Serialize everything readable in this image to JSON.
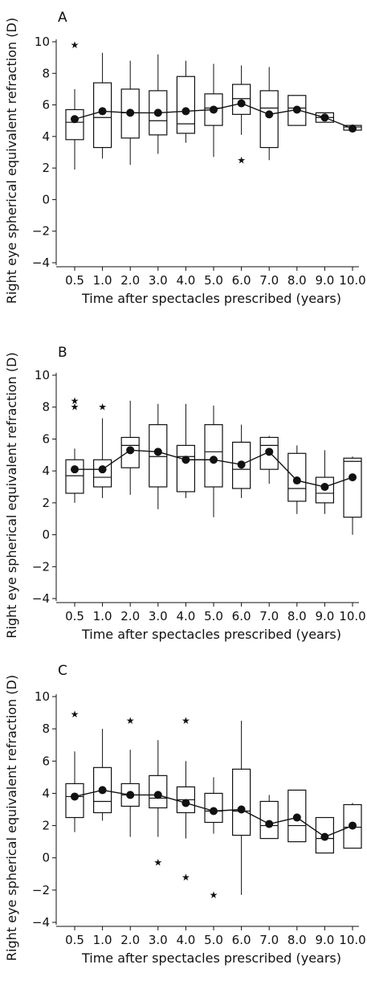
{
  "chart_data": [
    {
      "type": "box",
      "panel_label": "A",
      "xlabel": "Time after spectacles prescribed (years)",
      "ylabel": "Right eye spherical equivalent refraction (D)",
      "ylim": [
        -4,
        10
      ],
      "yticks": [
        -4,
        -2,
        0,
        2,
        4,
        6,
        8,
        10
      ],
      "ytick_labels": [
        "−4",
        "−2",
        "0",
        "2",
        "4",
        "6",
        "8",
        "10"
      ],
      "categories": [
        "0.5",
        "1.0",
        "2.0",
        "3.0",
        "4.0",
        "5.0",
        "6.0",
        "7.0",
        "8.0",
        "9.0",
        "10.0"
      ],
      "boxes": [
        {
          "min": 1.9,
          "q1": 3.8,
          "median": 4.9,
          "q3": 5.7,
          "max": 7.0
        },
        {
          "min": 2.6,
          "q1": 3.3,
          "median": 5.2,
          "q3": 7.4,
          "max": 9.3
        },
        {
          "min": 2.2,
          "q1": 3.9,
          "median": 5.5,
          "q3": 7.0,
          "max": 8.8
        },
        {
          "min": 2.9,
          "q1": 4.1,
          "median": 5.0,
          "q3": 6.9,
          "max": 9.2
        },
        {
          "min": 3.6,
          "q1": 4.2,
          "median": 4.8,
          "q3": 7.8,
          "max": 8.8
        },
        {
          "min": 2.7,
          "q1": 4.7,
          "median": 5.8,
          "q3": 6.7,
          "max": 8.6
        },
        {
          "min": 4.1,
          "q1": 5.4,
          "median": 6.4,
          "q3": 7.3,
          "max": 8.5
        },
        {
          "min": 2.5,
          "q1": 3.3,
          "median": 5.8,
          "q3": 6.9,
          "max": 8.4
        },
        {
          "min": 4.7,
          "q1": 4.7,
          "median": 5.8,
          "q3": 6.6,
          "max": 6.6
        },
        {
          "min": 4.9,
          "q1": 4.9,
          "median": 5.2,
          "q3": 5.5,
          "max": 5.5
        },
        {
          "min": 4.4,
          "q1": 4.4,
          "median": 4.6,
          "q3": 4.7,
          "max": 4.7
        }
      ],
      "means": [
        5.1,
        5.6,
        5.5,
        5.5,
        5.6,
        5.7,
        6.1,
        5.4,
        5.7,
        5.2,
        4.5
      ],
      "outliers": [
        {
          "category": "0.5",
          "value": 9.8
        },
        {
          "category": "6.0",
          "value": 2.5
        }
      ]
    },
    {
      "type": "box",
      "panel_label": "B",
      "xlabel": "Time after spectacles prescribed (years)",
      "ylabel": "Right eye spherical equivalent refraction (D)",
      "ylim": [
        -4,
        10
      ],
      "yticks": [
        -4,
        -2,
        0,
        2,
        4,
        6,
        8,
        10
      ],
      "ytick_labels": [
        "−4",
        "−2",
        "0",
        "2",
        "4",
        "6",
        "8",
        "10"
      ],
      "categories": [
        "0.5",
        "1.0",
        "2.0",
        "3.0",
        "4.0",
        "5.0",
        "6.0",
        "7.0",
        "8.0",
        "9.0",
        "10.0"
      ],
      "boxes": [
        {
          "min": 2.0,
          "q1": 2.6,
          "median": 3.7,
          "q3": 4.7,
          "max": 5.4
        },
        {
          "min": 2.3,
          "q1": 3.0,
          "median": 3.6,
          "q3": 4.7,
          "max": 7.3
        },
        {
          "min": 2.5,
          "q1": 4.2,
          "median": 5.6,
          "q3": 6.1,
          "max": 8.4
        },
        {
          "min": 1.6,
          "q1": 3.0,
          "median": 4.9,
          "q3": 6.9,
          "max": 8.2
        },
        {
          "min": 2.3,
          "q1": 2.7,
          "median": 4.9,
          "q3": 5.6,
          "max": 8.2
        },
        {
          "min": 1.1,
          "q1": 3.0,
          "median": 5.2,
          "q3": 6.9,
          "max": 8.1
        },
        {
          "min": 2.3,
          "q1": 2.9,
          "median": 4.1,
          "q3": 5.8,
          "max": 6.9
        },
        {
          "min": 3.2,
          "q1": 4.1,
          "median": 5.6,
          "q3": 6.1,
          "max": 6.2
        },
        {
          "min": 1.3,
          "q1": 2.1,
          "median": 2.9,
          "q3": 5.1,
          "max": 5.6
        },
        {
          "min": 1.3,
          "q1": 2.0,
          "median": 2.6,
          "q3": 3.6,
          "max": 5.3
        },
        {
          "min": 0.0,
          "q1": 1.1,
          "median": 4.6,
          "q3": 4.8,
          "max": 4.9
        }
      ],
      "means": [
        4.1,
        4.1,
        5.3,
        5.2,
        4.7,
        4.7,
        4.4,
        5.2,
        3.4,
        3.0,
        3.6
      ],
      "outliers": [
        {
          "category": "0.5",
          "value": 8.4
        },
        {
          "category": "0.5",
          "value": 8.0
        },
        {
          "category": "1.0",
          "value": 8.0
        }
      ]
    },
    {
      "type": "box",
      "panel_label": "C",
      "xlabel": "Time after spectacles prescribed (years)",
      "ylabel": "Right eye spherical equivalent refraction (D)",
      "ylim": [
        -4,
        10
      ],
      "yticks": [
        -4,
        -2,
        0,
        2,
        4,
        6,
        8,
        10
      ],
      "ytick_labels": [
        "−4",
        "−2",
        "0",
        "2",
        "4",
        "6",
        "8",
        "10"
      ],
      "categories": [
        "0.5",
        "1.0",
        "2.0",
        "3.0",
        "4.0",
        "5.0",
        "6.0",
        "7.0",
        "8.0",
        "9.0",
        "10.0"
      ],
      "boxes": [
        {
          "min": 1.6,
          "q1": 2.5,
          "median": 3.8,
          "q3": 4.6,
          "max": 6.6
        },
        {
          "min": 2.3,
          "q1": 2.8,
          "median": 3.5,
          "q3": 5.6,
          "max": 8.0
        },
        {
          "min": 1.3,
          "q1": 3.2,
          "median": 3.9,
          "q3": 4.6,
          "max": 6.7
        },
        {
          "min": 1.3,
          "q1": 3.1,
          "median": 3.7,
          "q3": 5.1,
          "max": 7.3
        },
        {
          "min": 1.2,
          "q1": 2.8,
          "median": 3.6,
          "q3": 4.4,
          "max": 6.0
        },
        {
          "min": 1.5,
          "q1": 2.2,
          "median": 2.9,
          "q3": 4.0,
          "max": 5.0
        },
        {
          "min": -2.3,
          "q1": 1.4,
          "median": 2.9,
          "q3": 5.5,
          "max": 8.5
        },
        {
          "min": 1.2,
          "q1": 1.2,
          "median": 2.0,
          "q3": 3.5,
          "max": 3.9
        },
        {
          "min": 1.0,
          "q1": 1.0,
          "median": 2.0,
          "q3": 4.2,
          "max": 4.2
        },
        {
          "min": 0.3,
          "q1": 0.3,
          "median": 1.2,
          "q3": 2.5,
          "max": 2.5
        },
        {
          "min": 0.6,
          "q1": 0.6,
          "median": 1.9,
          "q3": 3.3,
          "max": 3.4
        }
      ],
      "means": [
        3.8,
        4.2,
        3.9,
        3.9,
        3.4,
        2.9,
        3.0,
        2.1,
        2.5,
        1.3,
        2.0
      ],
      "outliers": [
        {
          "category": "0.5",
          "value": 8.9
        },
        {
          "category": "2.0",
          "value": 8.5
        },
        {
          "category": "3.0",
          "value": -0.3
        },
        {
          "category": "4.0",
          "value": 8.5
        },
        {
          "category": "4.0",
          "value": -1.2
        },
        {
          "category": "5.0",
          "value": -2.3
        }
      ]
    }
  ]
}
